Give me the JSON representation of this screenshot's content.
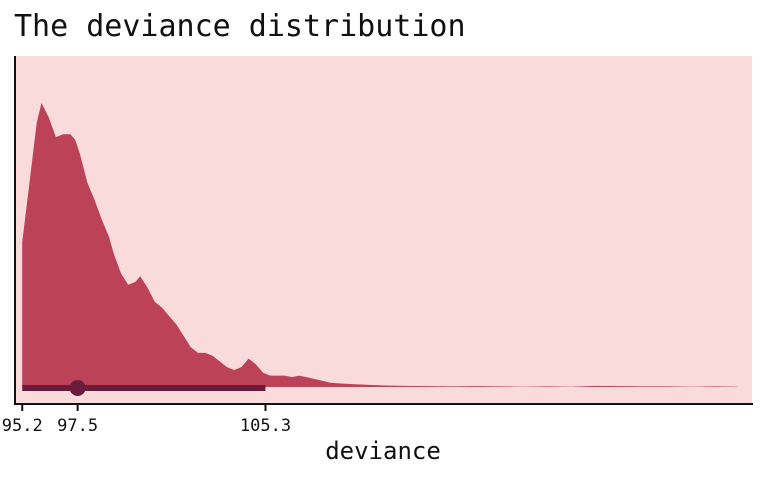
{
  "chart_data": {
    "type": "area",
    "title": "The deviance distribution",
    "xlabel": "deviance",
    "ylabel": "",
    "xlim": [
      94.9,
      125.5
    ],
    "ylim": [
      0,
      1.0
    ],
    "x_ticks": [
      95.2,
      97.5,
      105.3
    ],
    "x_tick_labels": [
      "95.2",
      "97.5",
      "105.3"
    ],
    "y_axis_ticks_shown": false,
    "grid": false,
    "legend": "none",
    "series": [
      {
        "x": [
          95.2,
          95.5,
          95.8,
          96.0,
          96.3,
          96.6,
          96.9,
          97.2,
          97.4,
          97.6,
          97.9,
          98.2,
          98.5,
          98.8,
          99.0,
          99.3,
          99.6,
          99.9,
          100.1,
          100.4,
          100.7,
          101.0,
          101.3,
          101.6,
          101.9,
          102.2,
          102.5,
          102.8,
          103.1,
          103.4,
          103.7,
          104.0,
          104.3,
          104.6,
          104.9,
          105.2,
          105.5,
          105.8,
          106.1,
          106.4,
          106.7,
          107.0,
          107.5,
          108.0,
          108.5,
          109.0,
          109.5,
          110.0,
          111.0,
          112.0,
          113.0,
          114.0,
          115.0,
          116.0,
          117.0,
          118.0,
          119.0,
          120.0,
          121.0,
          122.0,
          123.0,
          124.0,
          124.9
        ],
        "y": [
          0.51,
          0.72,
          0.93,
          1.0,
          0.95,
          0.88,
          0.89,
          0.89,
          0.87,
          0.82,
          0.72,
          0.66,
          0.59,
          0.53,
          0.47,
          0.4,
          0.36,
          0.37,
          0.39,
          0.35,
          0.3,
          0.28,
          0.25,
          0.22,
          0.18,
          0.14,
          0.12,
          0.12,
          0.11,
          0.09,
          0.07,
          0.06,
          0.07,
          0.1,
          0.08,
          0.05,
          0.04,
          0.04,
          0.04,
          0.035,
          0.04,
          0.035,
          0.025,
          0.015,
          0.012,
          0.01,
          0.008,
          0.006,
          0.004,
          0.003,
          0.002,
          0.003,
          0.002,
          0.001,
          0.002,
          0.001,
          0.004,
          0.003,
          0.002,
          0.002,
          0.001,
          0.002,
          0.001
        ]
      }
    ],
    "point_interval": {
      "point": 97.5,
      "lower": 95.2,
      "upper": 105.3
    },
    "colors": {
      "panel_background": "#f9dbdc",
      "density_fill": "#bc4258",
      "interval": "#6b1c3c",
      "axis": "#111111"
    }
  }
}
